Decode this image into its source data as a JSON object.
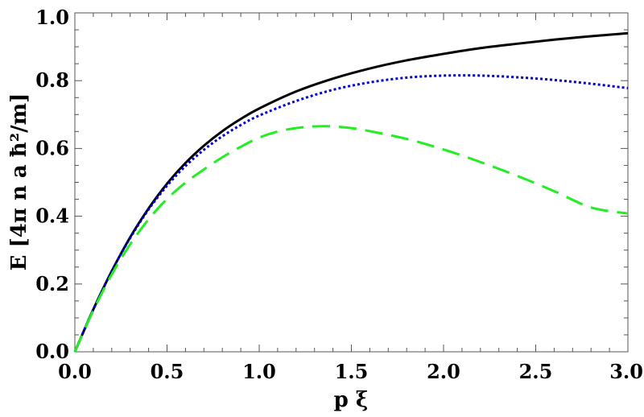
{
  "chart_data": {
    "type": "line",
    "xlabel": "p ξ",
    "ylabel": "E [4π n a ħ²/m]",
    "xlim": [
      0,
      3
    ],
    "ylim": [
      0,
      1
    ],
    "xticks": [
      {
        "value": 0.0,
        "label": "0.0"
      },
      {
        "value": 0.5,
        "label": "0.5"
      },
      {
        "value": 1.0,
        "label": "1.0"
      },
      {
        "value": 1.5,
        "label": "1.5"
      },
      {
        "value": 2.0,
        "label": "2.0"
      },
      {
        "value": 2.5,
        "label": "2.5"
      },
      {
        "value": 3.0,
        "label": "3.0"
      }
    ],
    "yticks": [
      {
        "value": 0.0,
        "label": "0.0"
      },
      {
        "value": 0.2,
        "label": "0.2"
      },
      {
        "value": 0.4,
        "label": "0.4"
      },
      {
        "value": 0.6,
        "label": "0.6"
      },
      {
        "value": 0.8,
        "label": "0.8"
      },
      {
        "value": 1.0,
        "label": "1.0"
      }
    ],
    "grid": false,
    "series": [
      {
        "color": "#000000",
        "style": "solid",
        "x": [
          0,
          0.1,
          0.2,
          0.3,
          0.4,
          0.5,
          0.6,
          0.7,
          0.8,
          0.9,
          1.0,
          1.2,
          1.4,
          1.6,
          1.8,
          2.0,
          2.2,
          2.4,
          2.6,
          2.8,
          3.0
        ],
        "y": [
          0,
          0.125,
          0.238,
          0.338,
          0.423,
          0.496,
          0.557,
          0.608,
          0.651,
          0.687,
          0.718,
          0.768,
          0.806,
          0.836,
          0.86,
          0.879,
          0.896,
          0.909,
          0.921,
          0.931,
          0.94
        ]
      },
      {
        "color": "#0000dd",
        "style": "dotted",
        "x": [
          0,
          0.1,
          0.2,
          0.3,
          0.4,
          0.5,
          0.6,
          0.7,
          0.8,
          0.9,
          1.0,
          1.2,
          1.4,
          1.6,
          1.8,
          2.0,
          2.2,
          2.4,
          2.6,
          2.8,
          3.0
        ],
        "y": [
          0,
          0.125,
          0.238,
          0.336,
          0.42,
          0.49,
          0.548,
          0.596,
          0.636,
          0.669,
          0.697,
          0.74,
          0.773,
          0.795,
          0.809,
          0.815,
          0.815,
          0.81,
          0.802,
          0.791,
          0.778
        ]
      },
      {
        "color": "#22ee22",
        "style": "dashed",
        "x": [
          0,
          0.1,
          0.2,
          0.3,
          0.4,
          0.5,
          0.6,
          0.7,
          0.8,
          0.9,
          1.0,
          1.1,
          1.2,
          1.3,
          1.4,
          1.5,
          1.6,
          1.8,
          2.0,
          2.2,
          2.4,
          2.6,
          2.8,
          3.0
        ],
        "y": [
          0,
          0.122,
          0.228,
          0.317,
          0.391,
          0.451,
          0.499,
          0.538,
          0.574,
          0.605,
          0.632,
          0.65,
          0.66,
          0.665,
          0.665,
          0.66,
          0.651,
          0.628,
          0.597,
          0.56,
          0.519,
          0.474,
          0.426,
          0.408
        ]
      }
    ]
  }
}
